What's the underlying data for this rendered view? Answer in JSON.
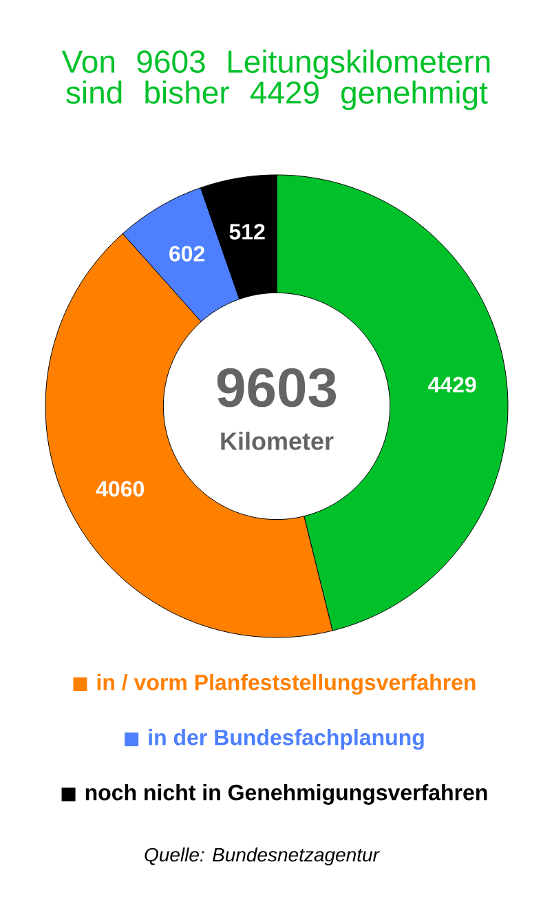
{
  "chart_data": {
    "type": "donut",
    "title": "Von 9603 Leitungskilometern sind bisher 4429 genehmigt",
    "categories": [
      null,
      "in / vorm Planfeststellungsverfahren",
      "in der Bundesfachplanung",
      "noch nicht in Genehmigungsverfahren"
    ],
    "values": [
      4429,
      4060,
      602,
      512
    ],
    "colors": [
      "#00c12a",
      "#ff8000",
      "#4d7fff",
      "#000000"
    ],
    "data_labels": true,
    "legend": "bottom",
    "annotations": [
      "9603",
      "Kilometer",
      "Quelle: Bundesnetzagentur"
    ]
  }
}
